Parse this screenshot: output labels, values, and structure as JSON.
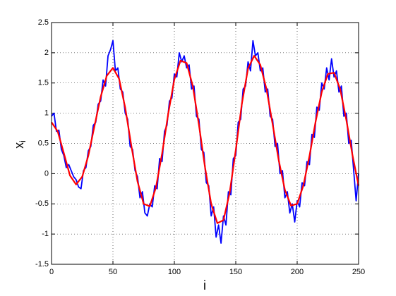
{
  "chart_data": {
    "type": "line",
    "xlabel": "i",
    "ylabel": "x",
    "ylabel_subscript": "i",
    "xlim": [
      0,
      250
    ],
    "xticks": [
      0,
      50,
      100,
      150,
      200,
      250
    ],
    "ylim": [
      -1.5,
      2.5
    ],
    "yticks": [
      -1.5,
      -1,
      -0.5,
      0,
      0.5,
      1,
      1.5,
      2,
      2.5
    ],
    "grid": true,
    "series": [
      {
        "color": "#0000ff",
        "x": [
          0,
          2,
          4,
          6,
          8,
          10,
          12,
          14,
          16,
          18,
          20,
          22,
          24,
          26,
          28,
          30,
          32,
          34,
          36,
          38,
          40,
          42,
          44,
          46,
          48,
          50,
          52,
          54,
          56,
          58,
          60,
          62,
          64,
          66,
          68,
          70,
          72,
          74,
          76,
          78,
          80,
          82,
          84,
          86,
          88,
          90,
          92,
          94,
          96,
          98,
          100,
          102,
          104,
          106,
          108,
          110,
          112,
          114,
          116,
          118,
          120,
          122,
          124,
          126,
          128,
          130,
          132,
          134,
          136,
          138,
          140,
          142,
          144,
          146,
          148,
          150,
          152,
          154,
          156,
          158,
          160,
          162,
          164,
          166,
          168,
          170,
          172,
          174,
          176,
          178,
          180,
          182,
          184,
          186,
          188,
          190,
          192,
          194,
          196,
          198,
          200,
          202,
          204,
          206,
          208,
          210,
          212,
          214,
          216,
          218,
          220,
          222,
          224,
          226,
          228,
          230,
          232,
          234,
          236,
          238,
          240,
          242,
          244,
          246,
          248,
          250
        ],
        "values": [
          0.95,
          1.0,
          0.7,
          0.72,
          0.4,
          0.3,
          0.1,
          0.15,
          0.05,
          -0.05,
          -0.1,
          -0.22,
          -0.25,
          0.05,
          0.1,
          0.38,
          0.45,
          0.8,
          0.85,
          1.15,
          1.2,
          1.55,
          1.45,
          1.95,
          2.05,
          2.2,
          1.7,
          1.75,
          1.4,
          1.35,
          1.0,
          0.9,
          0.45,
          0.4,
          0.05,
          -0.05,
          -0.4,
          -0.3,
          -0.65,
          -0.7,
          -0.5,
          -0.55,
          -0.2,
          -0.25,
          0.25,
          0.2,
          0.7,
          0.8,
          1.2,
          1.25,
          1.65,
          1.6,
          2.0,
          1.85,
          1.95,
          1.75,
          1.8,
          1.4,
          1.45,
          0.95,
          0.9,
          0.4,
          0.35,
          -0.15,
          -0.2,
          -0.7,
          -0.55,
          -1.05,
          -0.85,
          -1.15,
          -0.7,
          -0.85,
          -0.3,
          -0.35,
          0.25,
          0.3,
          0.85,
          0.9,
          1.4,
          1.45,
          1.85,
          1.7,
          2.2,
          1.95,
          2.0,
          1.7,
          1.75,
          1.35,
          1.4,
          0.95,
          0.9,
          0.45,
          0.5,
          0.0,
          0.05,
          -0.4,
          -0.3,
          -0.65,
          -0.5,
          -0.8,
          -0.45,
          -0.55,
          -0.15,
          -0.2,
          0.2,
          0.15,
          0.65,
          0.6,
          1.1,
          1.05,
          1.5,
          1.4,
          1.75,
          1.55,
          1.9,
          1.6,
          1.7,
          1.35,
          1.45,
          0.95,
          1.0,
          0.5,
          0.55,
          0.05,
          -0.45,
          0.0
        ]
      },
      {
        "color": "#ff0000",
        "x": [
          0,
          5,
          10,
          15,
          20,
          25,
          30,
          35,
          40,
          45,
          50,
          55,
          60,
          65,
          70,
          75,
          80,
          85,
          90,
          95,
          100,
          105,
          110,
          115,
          120,
          125,
          130,
          135,
          140,
          145,
          150,
          155,
          160,
          165,
          170,
          175,
          180,
          185,
          190,
          195,
          200,
          205,
          210,
          215,
          220,
          225,
          230,
          235,
          240,
          245,
          250
        ],
        "values": [
          0.85,
          0.7,
          0.34,
          -0.03,
          -0.18,
          -0.05,
          0.3,
          0.79,
          1.27,
          1.62,
          1.75,
          1.57,
          1.09,
          0.46,
          -0.13,
          -0.5,
          -0.54,
          -0.23,
          0.33,
          0.99,
          1.56,
          1.87,
          1.83,
          1.45,
          0.81,
          0.1,
          -0.5,
          -0.82,
          -0.77,
          -0.32,
          0.39,
          1.16,
          1.74,
          1.95,
          1.8,
          1.4,
          0.82,
          0.22,
          -0.27,
          -0.53,
          -0.5,
          -0.2,
          0.29,
          0.86,
          1.35,
          1.65,
          1.67,
          1.4,
          0.89,
          0.31,
          -0.2
        ]
      }
    ]
  }
}
